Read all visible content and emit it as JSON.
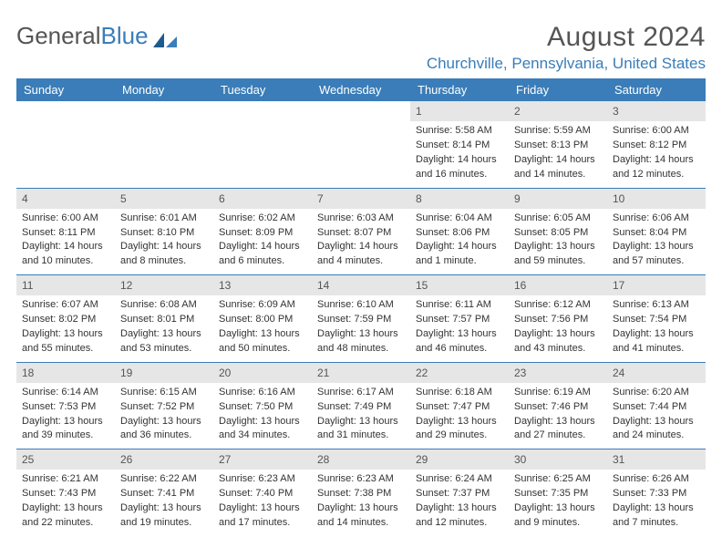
{
  "logo": {
    "text_a": "General",
    "text_b": "Blue"
  },
  "title": "August 2024",
  "location": "Churchville, Pennsylvania, United States",
  "colors": {
    "header_bg": "#3a7db8",
    "daynum_bg": "#e6e6e6",
    "text": "#333333",
    "title_text": "#555555"
  },
  "day_headers": [
    "Sunday",
    "Monday",
    "Tuesday",
    "Wednesday",
    "Thursday",
    "Friday",
    "Saturday"
  ],
  "weeks": [
    [
      null,
      null,
      null,
      null,
      {
        "n": "1",
        "sr": "Sunrise: 5:58 AM",
        "ss": "Sunset: 8:14 PM",
        "d1": "Daylight: 14 hours",
        "d2": "and 16 minutes."
      },
      {
        "n": "2",
        "sr": "Sunrise: 5:59 AM",
        "ss": "Sunset: 8:13 PM",
        "d1": "Daylight: 14 hours",
        "d2": "and 14 minutes."
      },
      {
        "n": "3",
        "sr": "Sunrise: 6:00 AM",
        "ss": "Sunset: 8:12 PM",
        "d1": "Daylight: 14 hours",
        "d2": "and 12 minutes."
      }
    ],
    [
      {
        "n": "4",
        "sr": "Sunrise: 6:00 AM",
        "ss": "Sunset: 8:11 PM",
        "d1": "Daylight: 14 hours",
        "d2": "and 10 minutes."
      },
      {
        "n": "5",
        "sr": "Sunrise: 6:01 AM",
        "ss": "Sunset: 8:10 PM",
        "d1": "Daylight: 14 hours",
        "d2": "and 8 minutes."
      },
      {
        "n": "6",
        "sr": "Sunrise: 6:02 AM",
        "ss": "Sunset: 8:09 PM",
        "d1": "Daylight: 14 hours",
        "d2": "and 6 minutes."
      },
      {
        "n": "7",
        "sr": "Sunrise: 6:03 AM",
        "ss": "Sunset: 8:07 PM",
        "d1": "Daylight: 14 hours",
        "d2": "and 4 minutes."
      },
      {
        "n": "8",
        "sr": "Sunrise: 6:04 AM",
        "ss": "Sunset: 8:06 PM",
        "d1": "Daylight: 14 hours",
        "d2": "and 1 minute."
      },
      {
        "n": "9",
        "sr": "Sunrise: 6:05 AM",
        "ss": "Sunset: 8:05 PM",
        "d1": "Daylight: 13 hours",
        "d2": "and 59 minutes."
      },
      {
        "n": "10",
        "sr": "Sunrise: 6:06 AM",
        "ss": "Sunset: 8:04 PM",
        "d1": "Daylight: 13 hours",
        "d2": "and 57 minutes."
      }
    ],
    [
      {
        "n": "11",
        "sr": "Sunrise: 6:07 AM",
        "ss": "Sunset: 8:02 PM",
        "d1": "Daylight: 13 hours",
        "d2": "and 55 minutes."
      },
      {
        "n": "12",
        "sr": "Sunrise: 6:08 AM",
        "ss": "Sunset: 8:01 PM",
        "d1": "Daylight: 13 hours",
        "d2": "and 53 minutes."
      },
      {
        "n": "13",
        "sr": "Sunrise: 6:09 AM",
        "ss": "Sunset: 8:00 PM",
        "d1": "Daylight: 13 hours",
        "d2": "and 50 minutes."
      },
      {
        "n": "14",
        "sr": "Sunrise: 6:10 AM",
        "ss": "Sunset: 7:59 PM",
        "d1": "Daylight: 13 hours",
        "d2": "and 48 minutes."
      },
      {
        "n": "15",
        "sr": "Sunrise: 6:11 AM",
        "ss": "Sunset: 7:57 PM",
        "d1": "Daylight: 13 hours",
        "d2": "and 46 minutes."
      },
      {
        "n": "16",
        "sr": "Sunrise: 6:12 AM",
        "ss": "Sunset: 7:56 PM",
        "d1": "Daylight: 13 hours",
        "d2": "and 43 minutes."
      },
      {
        "n": "17",
        "sr": "Sunrise: 6:13 AM",
        "ss": "Sunset: 7:54 PM",
        "d1": "Daylight: 13 hours",
        "d2": "and 41 minutes."
      }
    ],
    [
      {
        "n": "18",
        "sr": "Sunrise: 6:14 AM",
        "ss": "Sunset: 7:53 PM",
        "d1": "Daylight: 13 hours",
        "d2": "and 39 minutes."
      },
      {
        "n": "19",
        "sr": "Sunrise: 6:15 AM",
        "ss": "Sunset: 7:52 PM",
        "d1": "Daylight: 13 hours",
        "d2": "and 36 minutes."
      },
      {
        "n": "20",
        "sr": "Sunrise: 6:16 AM",
        "ss": "Sunset: 7:50 PM",
        "d1": "Daylight: 13 hours",
        "d2": "and 34 minutes."
      },
      {
        "n": "21",
        "sr": "Sunrise: 6:17 AM",
        "ss": "Sunset: 7:49 PM",
        "d1": "Daylight: 13 hours",
        "d2": "and 31 minutes."
      },
      {
        "n": "22",
        "sr": "Sunrise: 6:18 AM",
        "ss": "Sunset: 7:47 PM",
        "d1": "Daylight: 13 hours",
        "d2": "and 29 minutes."
      },
      {
        "n": "23",
        "sr": "Sunrise: 6:19 AM",
        "ss": "Sunset: 7:46 PM",
        "d1": "Daylight: 13 hours",
        "d2": "and 27 minutes."
      },
      {
        "n": "24",
        "sr": "Sunrise: 6:20 AM",
        "ss": "Sunset: 7:44 PM",
        "d1": "Daylight: 13 hours",
        "d2": "and 24 minutes."
      }
    ],
    [
      {
        "n": "25",
        "sr": "Sunrise: 6:21 AM",
        "ss": "Sunset: 7:43 PM",
        "d1": "Daylight: 13 hours",
        "d2": "and 22 minutes."
      },
      {
        "n": "26",
        "sr": "Sunrise: 6:22 AM",
        "ss": "Sunset: 7:41 PM",
        "d1": "Daylight: 13 hours",
        "d2": "and 19 minutes."
      },
      {
        "n": "27",
        "sr": "Sunrise: 6:23 AM",
        "ss": "Sunset: 7:40 PM",
        "d1": "Daylight: 13 hours",
        "d2": "and 17 minutes."
      },
      {
        "n": "28",
        "sr": "Sunrise: 6:23 AM",
        "ss": "Sunset: 7:38 PM",
        "d1": "Daylight: 13 hours",
        "d2": "and 14 minutes."
      },
      {
        "n": "29",
        "sr": "Sunrise: 6:24 AM",
        "ss": "Sunset: 7:37 PM",
        "d1": "Daylight: 13 hours",
        "d2": "and 12 minutes."
      },
      {
        "n": "30",
        "sr": "Sunrise: 6:25 AM",
        "ss": "Sunset: 7:35 PM",
        "d1": "Daylight: 13 hours",
        "d2": "and 9 minutes."
      },
      {
        "n": "31",
        "sr": "Sunrise: 6:26 AM",
        "ss": "Sunset: 7:33 PM",
        "d1": "Daylight: 13 hours",
        "d2": "and 7 minutes."
      }
    ]
  ]
}
